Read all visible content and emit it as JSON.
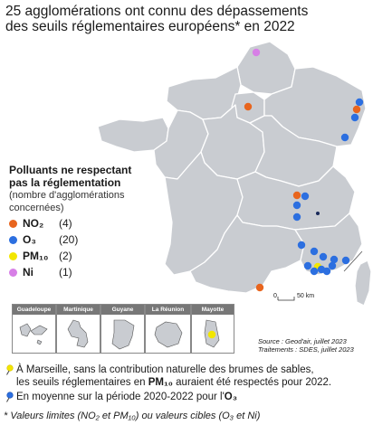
{
  "title": {
    "line1": "25 agglomérations ont connu des dépassements",
    "line2": "des seuils réglementaires européens* en 2022"
  },
  "legend": {
    "heading_line1": "Polluants ne respectant",
    "heading_line2": "pas la réglementation",
    "sub_line1": "(nombre d'agglomérations",
    "sub_line2": "concernées)",
    "items": [
      {
        "label": "NO₂",
        "count": "(4)",
        "color": "#e8651e"
      },
      {
        "label": "O₃",
        "count": "(20)",
        "color": "#2c6fe0"
      },
      {
        "label": "PM₁₀",
        "count": "(2)",
        "color": "#f2e600"
      },
      {
        "label": "Ni",
        "count": "(1)",
        "color": "#d77fe6"
      }
    ]
  },
  "colors": {
    "land": "#c9ccd1",
    "land_border": "#ffffff",
    "sea": "#ffffff"
  },
  "overseas": [
    {
      "label": "Guadeloupe"
    },
    {
      "label": "Martinique"
    },
    {
      "label": "Guyane"
    },
    {
      "label": "La Réunion"
    },
    {
      "label": "Mayotte"
    }
  ],
  "scale": {
    "zero": "0",
    "fifty": "50 km"
  },
  "source": {
    "line1": "Source : Geod'air, juillet 2023",
    "line2": "Traitements : SDES, juillet 2023"
  },
  "notes": {
    "marseille_a": "À Marseille, sans la contribution naturelle des brumes de sables,",
    "marseille_b1": "les seuils réglementaires en ",
    "marseille_pm": "PM₁₀",
    "marseille_b2": " auraient été respectés pour 2022.",
    "o3_a": "En moyenne sur la période 2020-2022 pour l'",
    "o3_b": "O₃",
    "footnote": "* Valeurs limites (NO₂ et PM₁₀) ou valeurs cibles (O₃ et Ni)"
  }
}
